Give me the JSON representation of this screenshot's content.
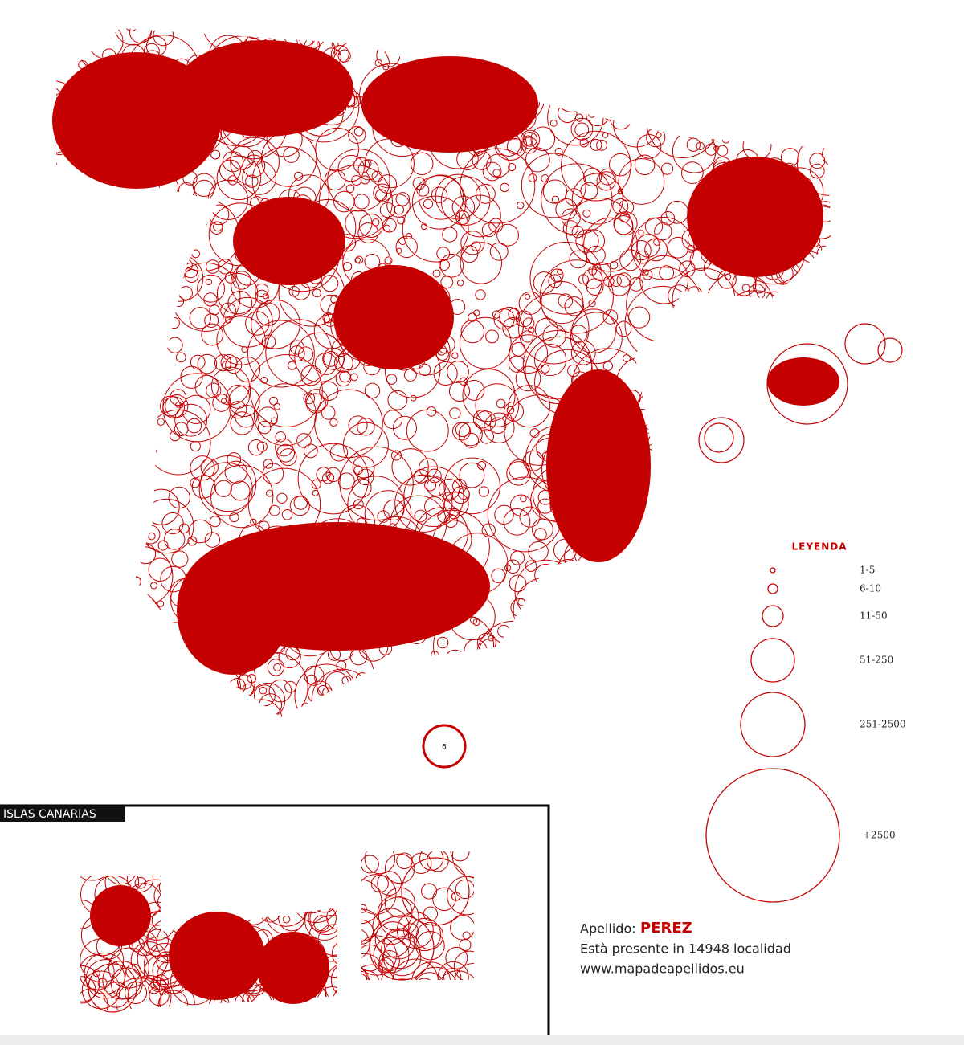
{
  "map": {
    "inset_label": "ISLAS CANARIAS",
    "ceuta_label": "6",
    "legend": {
      "title": "LEYENDA",
      "items": [
        "1-5",
        "6-10",
        "11-50",
        "51-250",
        "251-2500",
        "+2500"
      ]
    },
    "info": {
      "surname_label": "Apellido:",
      "surname": "PEREZ",
      "presence": "Està presente in 14948 localidad",
      "website": "www.mapadeapellidos.eu"
    }
  }
}
